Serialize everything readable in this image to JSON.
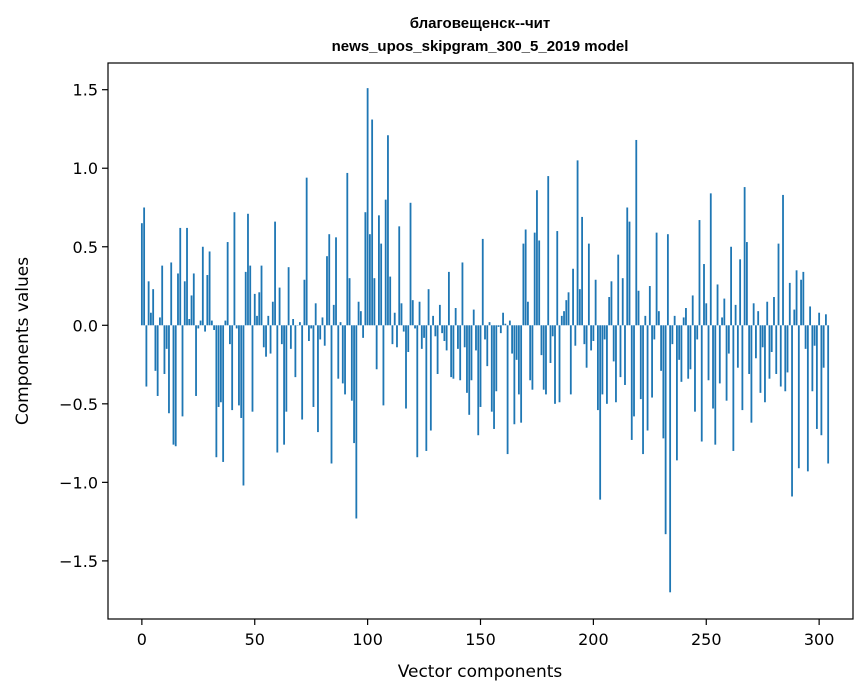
{
  "chart_data": {
    "type": "bar",
    "title_line1": "благовещенск--чит",
    "title_line2": "news_upos_skipgram_300_5_2019 model",
    "xlabel": "Vector components",
    "ylabel": "Components values",
    "xlim": [
      -15,
      315
    ],
    "ylim": [
      -1.87,
      1.67
    ],
    "xticks": [
      0,
      50,
      100,
      150,
      200,
      250,
      300
    ],
    "xtick_labels": [
      "0",
      "50",
      "100",
      "150",
      "200",
      "250",
      "300"
    ],
    "yticks": [
      -1.5,
      -1.0,
      -0.5,
      0.0,
      0.5,
      1.0,
      1.5
    ],
    "ytick_labels": [
      "−1.5",
      "−1.0",
      "−0.5",
      "0.0",
      "0.5",
      "1.0",
      "1.5"
    ],
    "bar_color": "#1f77b4",
    "grid": false,
    "values": [
      0.65,
      0.75,
      -0.39,
      0.28,
      0.08,
      0.23,
      -0.29,
      -0.45,
      0.05,
      0.38,
      -0.31,
      -0.15,
      -0.56,
      0.4,
      -0.76,
      -0.77,
      0.33,
      0.62,
      -0.58,
      0.28,
      0.62,
      0.04,
      0.19,
      0.33,
      -0.45,
      -0.02,
      0.03,
      0.5,
      -0.04,
      0.32,
      0.47,
      0.03,
      -0.03,
      -0.84,
      -0.52,
      -0.49,
      -0.87,
      0.03,
      0.53,
      -0.12,
      -0.54,
      0.72,
      -0.02,
      -0.51,
      -0.59,
      -1.02,
      0.34,
      0.71,
      0.38,
      -0.55,
      0.2,
      0.06,
      0.21,
      0.38,
      -0.14,
      -0.2,
      0.06,
      -0.18,
      0.15,
      0.66,
      -0.81,
      0.24,
      -0.12,
      -0.76,
      -0.55,
      0.37,
      -0.15,
      0.04,
      -0.33,
      0.0,
      0.02,
      -0.6,
      0.29,
      0.94,
      -0.1,
      -0.02,
      -0.52,
      0.14,
      -0.68,
      -0.09,
      0.05,
      -0.13,
      0.44,
      0.58,
      -0.88,
      0.13,
      0.56,
      -0.34,
      0.02,
      -0.37,
      -0.44,
      0.97,
      0.3,
      -0.48,
      -0.75,
      -1.23,
      0.15,
      0.09,
      -0.08,
      0.72,
      1.51,
      0.58,
      1.31,
      0.3,
      -0.28,
      0.7,
      0.52,
      -0.51,
      0.8,
      1.21,
      0.31,
      -0.12,
      0.08,
      -0.14,
      0.63,
      0.14,
      -0.04,
      -0.53,
      -0.17,
      0.78,
      0.16,
      -0.02,
      -0.84,
      0.15,
      -0.15,
      -0.08,
      -0.8,
      0.23,
      -0.67,
      0.06,
      -0.07,
      -0.31,
      0.13,
      -0.05,
      -0.1,
      -0.16,
      0.34,
      -0.33,
      -0.34,
      0.11,
      -0.15,
      -0.35,
      0.4,
      -0.14,
      -0.43,
      -0.57,
      -0.35,
      0.1,
      -0.16,
      -0.7,
      -0.52,
      0.55,
      -0.09,
      -0.26,
      0.02,
      -0.55,
      -0.66,
      -0.42,
      -0.01,
      -0.05,
      0.08,
      0.01,
      -0.82,
      0.03,
      -0.18,
      -0.63,
      -0.22,
      -0.44,
      -0.62,
      0.52,
      0.61,
      0.15,
      -0.35,
      -0.41,
      0.59,
      0.86,
      0.54,
      -0.19,
      -0.41,
      -0.44,
      0.95,
      -0.24,
      -0.07,
      -0.5,
      0.6,
      -0.49,
      0.06,
      0.09,
      0.16,
      0.21,
      -0.44,
      0.36,
      -0.13,
      1.05,
      0.23,
      0.69,
      -0.12,
      -0.27,
      0.52,
      -0.16,
      -0.1,
      0.29,
      -0.54,
      -1.11,
      -0.44,
      -0.09,
      -0.5,
      0.18,
      0.28,
      -0.23,
      -0.49,
      0.45,
      -0.33,
      0.3,
      -0.38,
      0.75,
      0.66,
      -0.73,
      -0.58,
      1.18,
      0.22,
      -0.47,
      -0.82,
      0.06,
      -0.67,
      0.25,
      -0.46,
      -0.09,
      0.59,
      0.09,
      -0.29,
      -0.72,
      -1.33,
      0.58,
      -1.7,
      -0.12,
      0.06,
      -0.86,
      -0.22,
      -0.36,
      0.05,
      0.11,
      -0.34,
      -0.28,
      0.19,
      -0.55,
      -0.09,
      0.67,
      -0.74,
      0.39,
      0.14,
      -0.35,
      0.84,
      -0.53,
      -0.76,
      0.26,
      -0.37,
      0.05,
      0.17,
      -0.48,
      -0.18,
      0.5,
      -0.8,
      0.13,
      -0.27,
      0.42,
      -0.54,
      0.88,
      0.53,
      -0.31,
      -0.62,
      0.14,
      -0.21,
      0.09,
      -0.43,
      -0.14,
      -0.49,
      0.15,
      -0.34,
      -0.17,
      0.18,
      -0.31,
      0.52,
      -0.39,
      0.83,
      -0.42,
      -0.3,
      0.27,
      -1.09,
      0.1,
      0.35,
      -0.91,
      0.29,
      0.34,
      -0.15,
      -0.93,
      0.12,
      -0.42,
      -0.13,
      -0.66,
      0.08,
      -0.7,
      -0.27,
      0.07,
      -0.88
    ]
  }
}
